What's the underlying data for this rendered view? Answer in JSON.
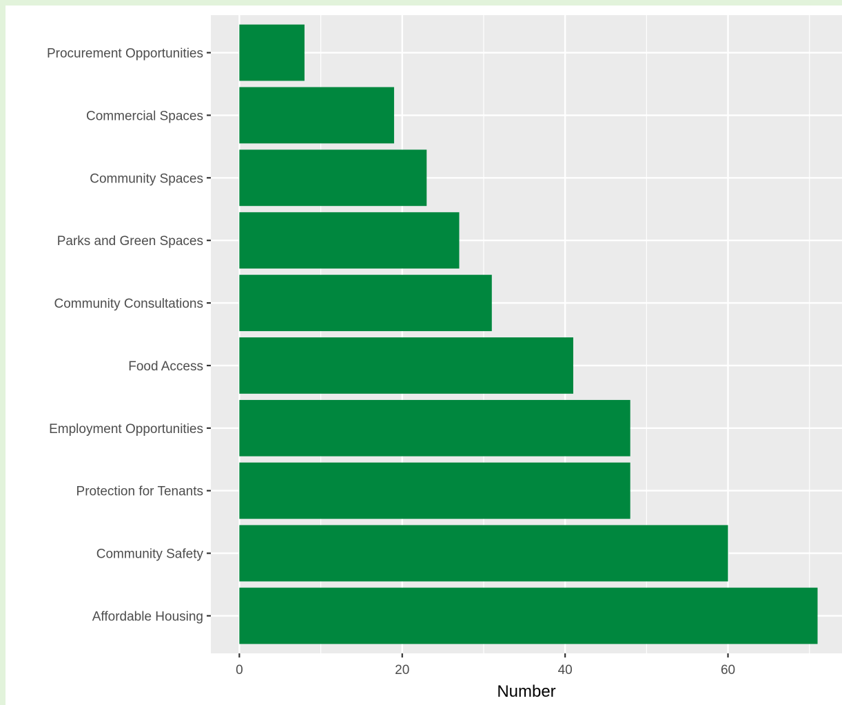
{
  "chart_data": {
    "type": "bar",
    "orientation": "horizontal",
    "categories": [
      "Procurement Opportunities",
      "Commercial Spaces",
      "Community Spaces",
      "Parks and Green Spaces",
      "Community Consultations",
      "Food Access",
      "Employment Opportunities",
      "Protection for Tenants",
      "Community Safety",
      "Affordable Housing"
    ],
    "values": [
      8,
      19,
      23,
      27,
      31,
      41,
      48,
      48,
      60,
      71
    ],
    "xlabel": "Number",
    "ylabel": "",
    "xlim": [
      -3.5,
      74
    ],
    "x_ticks": [
      0,
      20,
      40,
      60
    ],
    "grid": true,
    "bar_color": "#00873e",
    "panel_color": "#ebebeb",
    "gridline_color": "#ffffff"
  }
}
